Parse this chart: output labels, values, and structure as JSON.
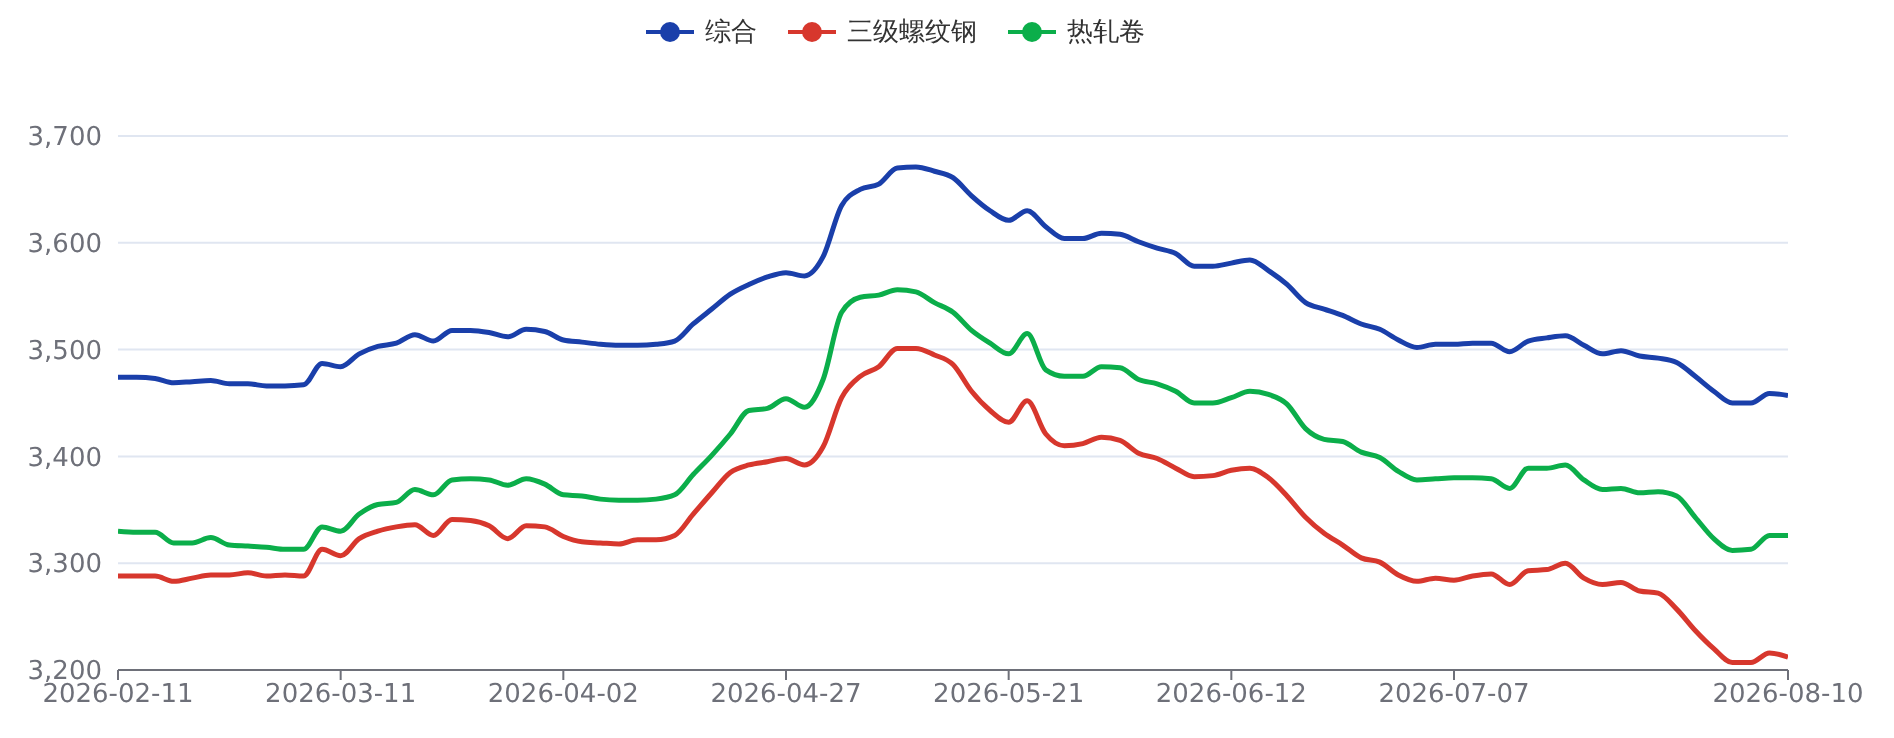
{
  "chart_data": {
    "type": "line",
    "categories": [
      "2026-02-11",
      null,
      null,
      null,
      null,
      null,
      null,
      null,
      null,
      null,
      null,
      null,
      "2026-03-11",
      null,
      null,
      null,
      null,
      null,
      null,
      null,
      null,
      null,
      null,
      null,
      "2026-04-02",
      null,
      null,
      null,
      null,
      null,
      null,
      null,
      null,
      null,
      null,
      null,
      "2026-04-27",
      null,
      null,
      null,
      null,
      null,
      null,
      null,
      null,
      null,
      null,
      null,
      "2026-05-21",
      null,
      null,
      null,
      null,
      null,
      null,
      null,
      null,
      null,
      null,
      null,
      "2026-06-12",
      null,
      null,
      null,
      null,
      null,
      null,
      null,
      null,
      null,
      null,
      null,
      "2026-07-07",
      null,
      null,
      null,
      null,
      null,
      null,
      null,
      null,
      null,
      null,
      null,
      null,
      null,
      null,
      null,
      null,
      null,
      "2026-08-10"
    ],
    "series": [
      {
        "name": "综合",
        "color": "#1a3faa",
        "values": [
          3474,
          3474,
          3473,
          3469,
          3470,
          3471,
          3468,
          3468,
          3466,
          3466,
          3467,
          3487,
          3484,
          3496,
          3503,
          3506,
          3514,
          3508,
          3518,
          3518,
          3516,
          3512,
          3519,
          3517,
          3509,
          3507,
          3505,
          3504,
          3504,
          3505,
          3508,
          3524,
          3538,
          3552,
          3561,
          3568,
          3572,
          3569,
          3587,
          3635,
          3650,
          3655,
          3670,
          3671,
          3667,
          3661,
          3644,
          3630,
          3621,
          3630,
          3615,
          3604,
          3604,
          3609,
          3608,
          3601,
          3595,
          3590,
          3578,
          3578,
          3581,
          3584,
          3574,
          3561,
          3544,
          3538,
          3532,
          3524,
          3519,
          3509,
          3502,
          3505,
          3505,
          3506,
          3506,
          3498,
          3508,
          3511,
          3513,
          3504,
          3496,
          3499,
          3494,
          3492,
          3488,
          3475,
          3461,
          3450,
          3450,
          3459,
          3457
        ]
      },
      {
        "name": "三级螺纹钢",
        "color": "#d7372d",
        "values": [
          3288,
          3288,
          3288,
          3283,
          3286,
          3289,
          3289,
          3291,
          3288,
          3289,
          3288,
          3313,
          3307,
          3323,
          3330,
          3334,
          3336,
          3326,
          3341,
          3340,
          3335,
          3323,
          3335,
          3334,
          3325,
          3320,
          3319,
          3318,
          3322,
          3322,
          3326,
          3346,
          3366,
          3385,
          3392,
          3395,
          3398,
          3392,
          3409,
          3455,
          3475,
          3484,
          3501,
          3501,
          3495,
          3486,
          3461,
          3443,
          3432,
          3452,
          3421,
          3410,
          3412,
          3418,
          3415,
          3403,
          3398,
          3389,
          3381,
          3382,
          3387,
          3389,
          3380,
          3363,
          3343,
          3328,
          3317,
          3305,
          3301,
          3289,
          3283,
          3286,
          3284,
          3288,
          3290,
          3280,
          3293,
          3294,
          3300,
          3286,
          3280,
          3282,
          3274,
          3272,
          3257,
          3237,
          3220,
          3207,
          3207,
          3216,
          3212
        ]
      },
      {
        "name": "热轧卷",
        "color": "#0bae4a",
        "values": [
          3330,
          3329,
          3329,
          3319,
          3319,
          3324,
          3317,
          3316,
          3315,
          3313,
          3313,
          3334,
          3330,
          3346,
          3355,
          3357,
          3369,
          3364,
          3378,
          3379,
          3378,
          3373,
          3379,
          3374,
          3364,
          3363,
          3360,
          3359,
          3359,
          3360,
          3364,
          3383,
          3401,
          3421,
          3443,
          3445,
          3454,
          3446,
          3472,
          3535,
          3549,
          3551,
          3556,
          3554,
          3544,
          3535,
          3518,
          3506,
          3496,
          3515,
          3481,
          3475,
          3475,
          3484,
          3483,
          3472,
          3468,
          3461,
          3450,
          3450,
          3455,
          3461,
          3458,
          3449,
          3426,
          3416,
          3414,
          3404,
          3399,
          3386,
          3378,
          3379,
          3380,
          3380,
          3379,
          3370,
          3389,
          3389,
          3392,
          3378,
          3369,
          3370,
          3366,
          3367,
          3363,
          3343,
          3323,
          3312,
          3313,
          3326,
          3326
        ]
      }
    ],
    "ylim": [
      3200,
      3700
    ],
    "yticks": [
      {
        "value": 3200,
        "label": "3,200"
      },
      {
        "value": 3300,
        "label": "3,300"
      },
      {
        "value": 3400,
        "label": "3,400"
      },
      {
        "value": 3500,
        "label": "3,500"
      },
      {
        "value": 3600,
        "label": "3,600"
      },
      {
        "value": 3700,
        "label": "3,700"
      }
    ],
    "grid": "y",
    "legend": "top",
    "marker": "none",
    "line_style": "solid"
  }
}
